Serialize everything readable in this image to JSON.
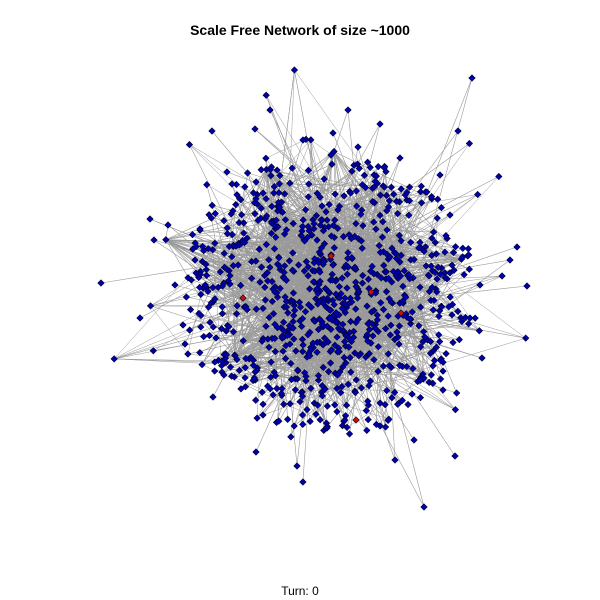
{
  "title": "Scale Free Network of size ~1000",
  "footer": {
    "turn_text": "Turn: 0"
  },
  "colors": {
    "node_fill": "#0000aa",
    "node_stroke": "#000033",
    "infected_fill": "#cc1100",
    "edge": "#9a9a9a",
    "background": "#ffffff"
  }
}
